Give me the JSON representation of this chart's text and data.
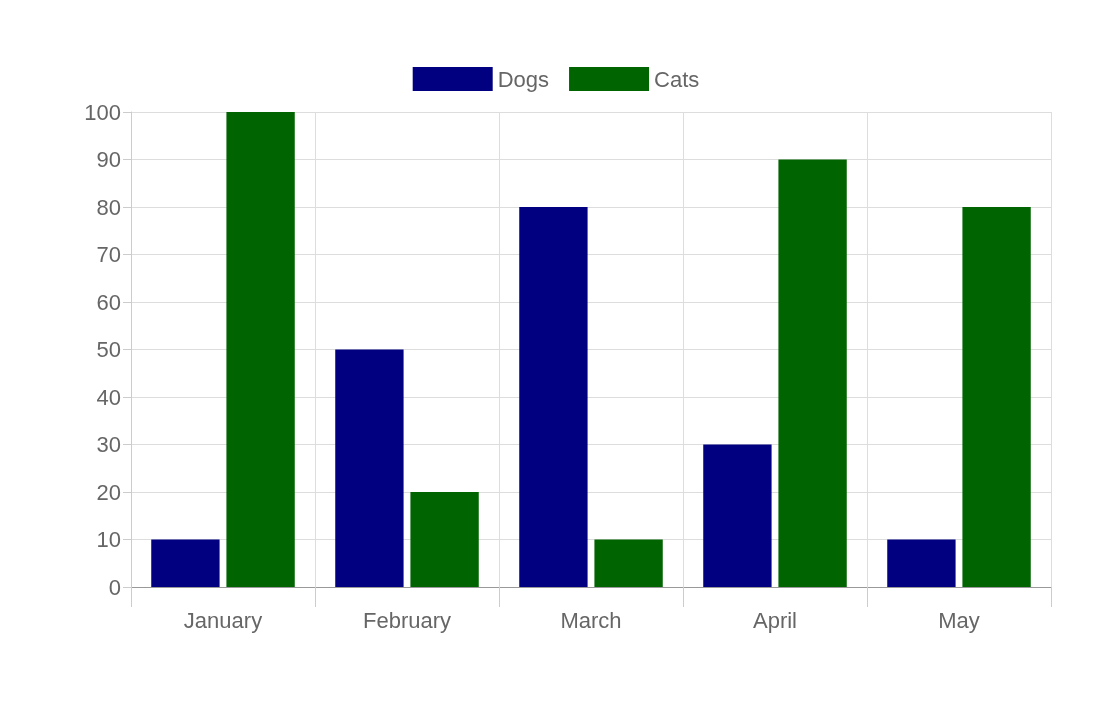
{
  "chart_data": {
    "type": "bar",
    "categories": [
      "January",
      "February",
      "March",
      "April",
      "May"
    ],
    "series": [
      {
        "name": "Dogs",
        "color": "#000080",
        "values": [
          10,
          50,
          80,
          30,
          10
        ]
      },
      {
        "name": "Cats",
        "color": "#006400",
        "values": [
          100,
          20,
          10,
          90,
          80
        ]
      }
    ],
    "ylim": [
      0,
      100
    ],
    "yticks": [
      0,
      10,
      20,
      30,
      40,
      50,
      60,
      70,
      80,
      90,
      100
    ],
    "grid": true,
    "legend": "top"
  }
}
